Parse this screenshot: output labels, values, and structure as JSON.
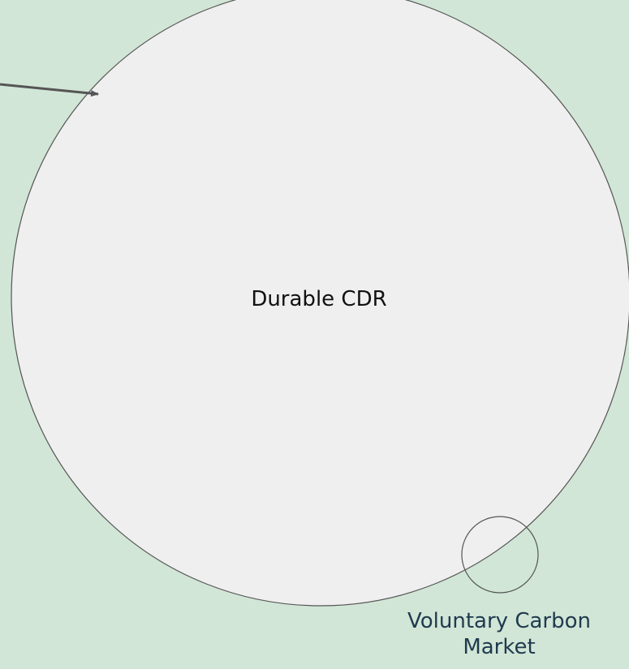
{
  "nodes": [
    {
      "label": "Durable CDR"
    },
    {
      "label": "Voluntary Carbon Market"
    }
  ]
}
